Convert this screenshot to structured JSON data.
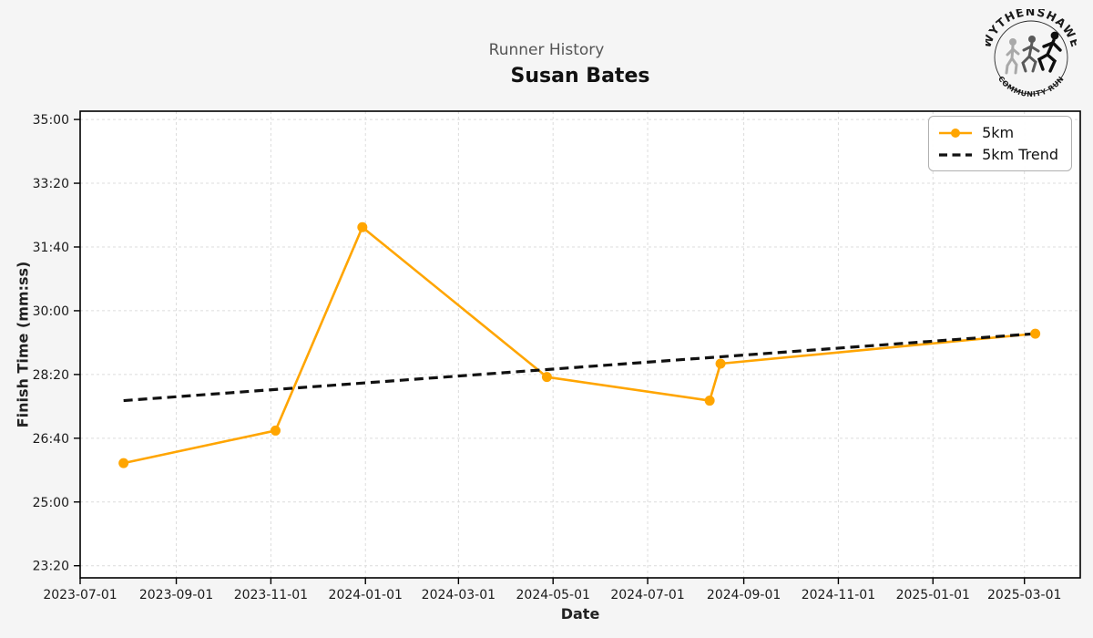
{
  "chart_data": {
    "type": "line",
    "suptitle": "Runner History",
    "title": "Susan Bates",
    "xlabel": "Date",
    "ylabel": "Finish Time (mm:ss)",
    "grid": true,
    "legend_position": "upper right",
    "xlim": [
      "2023-07-01",
      "2025-04-06"
    ],
    "ylim_seconds": [
      1381,
      2113
    ],
    "x_ticks": [
      "2023-07-01",
      "2023-09-01",
      "2023-11-01",
      "2024-01-01",
      "2024-03-01",
      "2024-05-01",
      "2024-07-01",
      "2024-09-01",
      "2024-11-01",
      "2025-01-01",
      "2025-03-01"
    ],
    "y_ticks": [
      "23:20",
      "25:00",
      "26:40",
      "28:20",
      "30:00",
      "31:40",
      "33:20",
      "35:00"
    ],
    "series": [
      {
        "name": "5km",
        "style": "solid-with-markers",
        "color": "#FFA500",
        "points": [
          {
            "date": "2023-07-29",
            "time": "26:01"
          },
          {
            "date": "2023-11-04",
            "time": "26:52"
          },
          {
            "date": "2023-12-30",
            "time": "32:11"
          },
          {
            "date": "2024-04-27",
            "time": "28:16"
          },
          {
            "date": "2024-08-10",
            "time": "27:39"
          },
          {
            "date": "2024-08-17",
            "time": "28:37"
          },
          {
            "date": "2025-03-08",
            "time": "29:24"
          }
        ]
      },
      {
        "name": "5km Trend",
        "style": "dashed",
        "color": "#111111",
        "points": [
          {
            "date": "2023-07-29",
            "time": "27:39"
          },
          {
            "date": "2025-03-08",
            "time": "29:24"
          }
        ]
      }
    ]
  },
  "logo": {
    "top_text": "WYTHENSHAWE",
    "bottom_text": "COMMUNITY RUN"
  },
  "colors": {
    "figure_bg": "#f5f5f5",
    "plot_bg": "#ffffff",
    "grid": "#dcdcdc",
    "spine": "#000000",
    "tick_label": "#1a1a1a",
    "suptitle": "#555555",
    "title": "#111111",
    "accent": "#FFA500"
  }
}
